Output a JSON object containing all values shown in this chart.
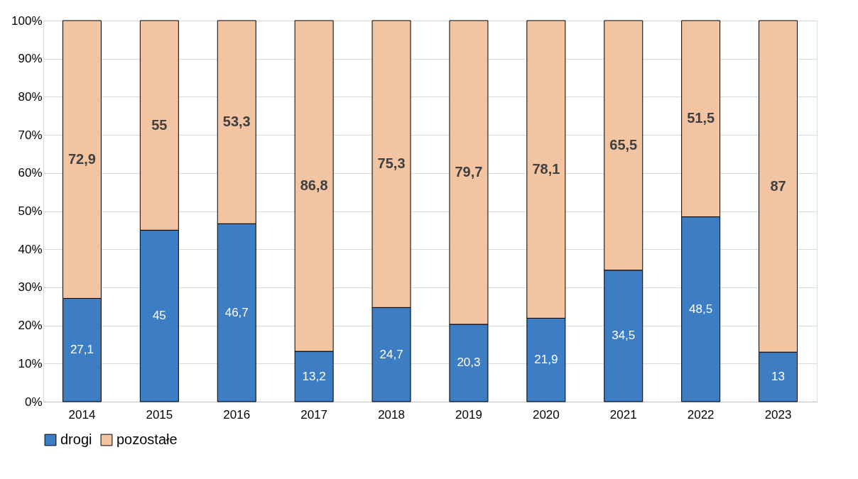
{
  "chart_data": {
    "type": "bar",
    "stacked": true,
    "categories": [
      "2014",
      "2015",
      "2016",
      "2017",
      "2018",
      "2019",
      "2020",
      "2021",
      "2022",
      "2023"
    ],
    "series": [
      {
        "name": "drogi",
        "color": "#3c7dc4",
        "values": [
          27.1,
          45,
          46.7,
          13.2,
          24.7,
          20.3,
          21.9,
          34.5,
          48.5,
          13
        ],
        "value_labels": [
          "27,1",
          "45",
          "46,7",
          "13,2",
          "24,7",
          "20,3",
          "21,9",
          "34,5",
          "48,5",
          "13"
        ]
      },
      {
        "name": "pozostałe",
        "color": "#f2c4a2",
        "values": [
          72.9,
          55,
          53.3,
          86.8,
          75.3,
          79.7,
          78.1,
          65.5,
          51.5,
          87
        ],
        "value_labels": [
          "72,9",
          "55",
          "53,3",
          "86,8",
          "75,3",
          "79,7",
          "78,1",
          "65,5",
          "51,5",
          "87"
        ]
      }
    ],
    "ylim": [
      0,
      100
    ],
    "yticks": [
      {
        "value": 0,
        "label": "0%"
      },
      {
        "value": 10,
        "label": "10%"
      },
      {
        "value": 20,
        "label": "20%"
      },
      {
        "value": 30,
        "label": "30%"
      },
      {
        "value": 40,
        "label": "40%"
      },
      {
        "value": 50,
        "label": "50%"
      },
      {
        "value": 60,
        "label": "60%"
      },
      {
        "value": 70,
        "label": "70%"
      },
      {
        "value": 80,
        "label": "80%"
      },
      {
        "value": 90,
        "label": "90%"
      },
      {
        "value": 100,
        "label": "100%"
      }
    ],
    "grid": "y",
    "legend": "bottom"
  }
}
